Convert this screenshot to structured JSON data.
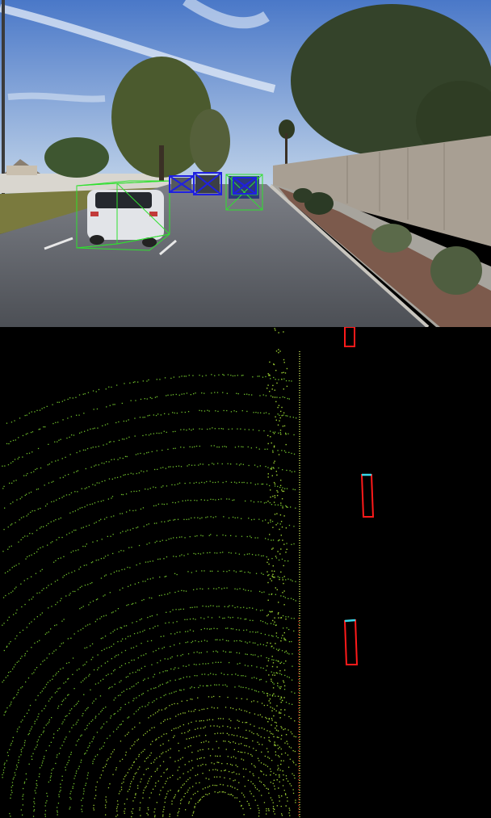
{
  "camera_view": {
    "scene": "suburban-road",
    "colors": {
      "sky_top": "#4a78c8",
      "sky_bottom": "#b7cde6",
      "road": "#5b5e64",
      "wall": "#a89f93",
      "foliage": "#3b4a2c",
      "box_near": "#2fe02f",
      "box_far": "#2020e0"
    }
  },
  "lidar_view": {
    "background": "#000000",
    "colors": {
      "point_ground": "#6fbf2c",
      "point_near": "#9acd32",
      "object_box": "#ff1a1a",
      "object_heading": "#38d8e8",
      "wall_line": "#c8e05a"
    }
  }
}
